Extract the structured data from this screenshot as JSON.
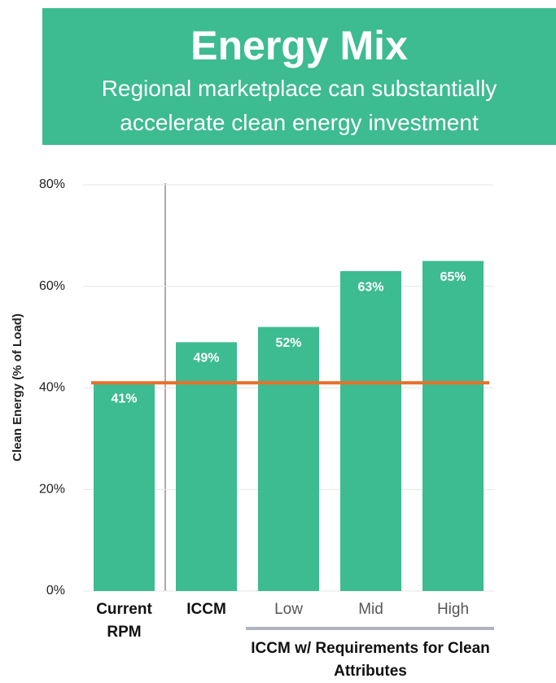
{
  "chart_data": {
    "type": "bar",
    "title": "Energy Mix",
    "subtitle": "Regional marketplace can substantially accelerate clean energy investment",
    "ylabel": "Clean Energy (% of Load)",
    "categories": [
      "Current RPM",
      "ICCM",
      "Low",
      "Mid",
      "High"
    ],
    "values": [
      41,
      49,
      52,
      63,
      65
    ],
    "value_labels": [
      "41%",
      "49%",
      "52%",
      "63%",
      "65%"
    ],
    "color": "#3dbb91",
    "ylim": [
      0,
      80
    ],
    "yticks": [
      {
        "value": 0,
        "label": "0%"
      },
      {
        "value": 20,
        "label": "20%"
      },
      {
        "value": 40,
        "label": "40%"
      },
      {
        "value": 60,
        "label": "60%"
      },
      {
        "value": 80,
        "label": "80%"
      }
    ],
    "grid": true,
    "reference_line": {
      "value": 41,
      "color": "#e8702a"
    },
    "group_label": "ICCM w/ Requirements for Clean Attributes"
  }
}
